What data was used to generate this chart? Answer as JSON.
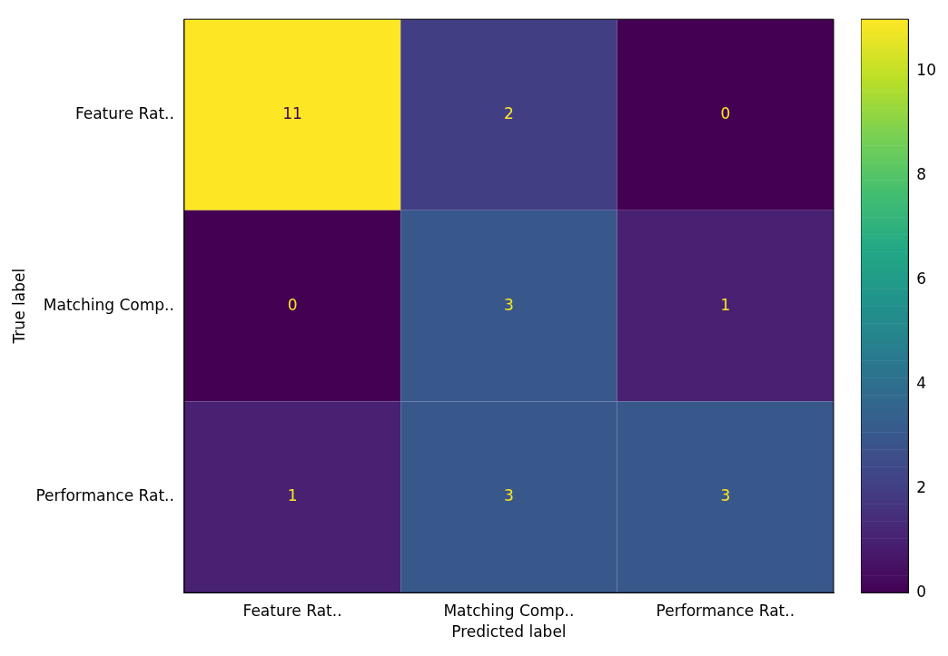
{
  "chart_data": {
    "type": "heatmap",
    "xlabel": "Predicted label",
    "ylabel": "True label",
    "categories": [
      "Feature Rat..",
      "Matching Comp..",
      "Performance Rat.."
    ],
    "y_categories": [
      "Feature Rat..",
      "Matching Comp..",
      "Performance Rat.."
    ],
    "cells": [
      [
        11,
        2,
        0
      ],
      [
        0,
        3,
        1
      ],
      [
        1,
        3,
        3
      ]
    ],
    "clim": [
      0,
      11
    ],
    "cticks": [
      0,
      2,
      4,
      6,
      8,
      10
    ],
    "data_labels": true
  }
}
